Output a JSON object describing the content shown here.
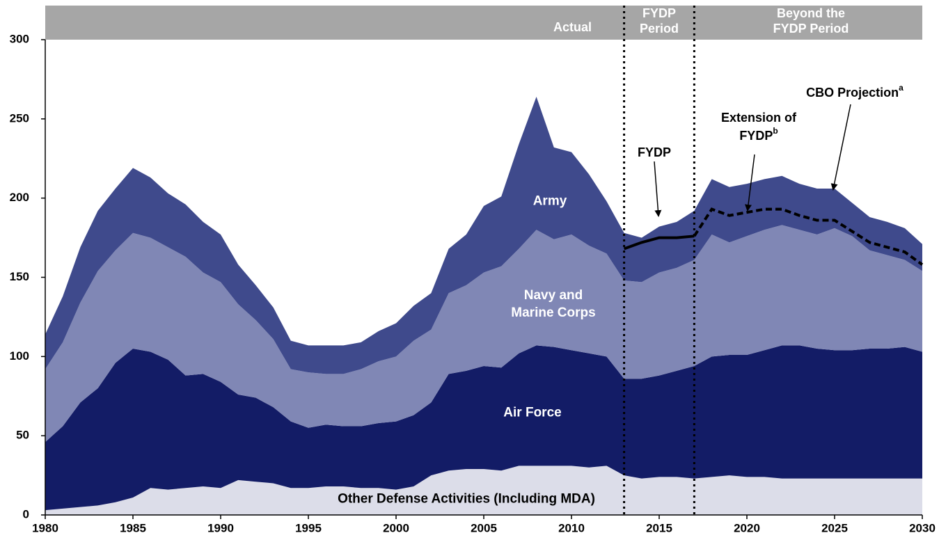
{
  "chart_data": {
    "type": "stacked_area",
    "x": [
      1980,
      1981,
      1982,
      1983,
      1984,
      1985,
      1986,
      1987,
      1988,
      1989,
      1990,
      1991,
      1992,
      1993,
      1994,
      1995,
      1996,
      1997,
      1998,
      1999,
      2000,
      2001,
      2002,
      2003,
      2004,
      2005,
      2006,
      2007,
      2008,
      2009,
      2010,
      2011,
      2012,
      2013,
      2014,
      2015,
      2016,
      2017,
      2018,
      2019,
      2020,
      2021,
      2022,
      2023,
      2024,
      2025,
      2026,
      2027,
      2028,
      2029,
      2030
    ],
    "series": [
      {
        "name": "Other Defense Activities (Including MDA)",
        "color": "#dcdde9",
        "values": [
          3,
          4,
          5,
          6,
          8,
          11,
          17,
          16,
          17,
          18,
          17,
          22,
          21,
          20,
          17,
          17,
          18,
          18,
          17,
          17,
          16,
          18,
          25,
          28,
          29,
          29,
          28,
          31,
          31,
          31,
          31,
          30,
          31,
          25,
          23,
          24,
          24,
          23,
          24,
          25,
          24,
          24,
          23,
          23,
          23,
          23,
          23,
          23,
          23,
          23,
          23
        ]
      },
      {
        "name": "Air Force",
        "color": "#131c66",
        "values": [
          43,
          52,
          66,
          74,
          88,
          94,
          86,
          82,
          71,
          71,
          67,
          54,
          53,
          48,
          42,
          38,
          39,
          38,
          39,
          41,
          43,
          45,
          46,
          61,
          62,
          65,
          65,
          71,
          76,
          75,
          73,
          72,
          69,
          61,
          63,
          64,
          67,
          71,
          76,
          76,
          77,
          80,
          84,
          84,
          82,
          81,
          81,
          82,
          82,
          83,
          80
        ]
      },
      {
        "name": "Navy and Marine Corps",
        "color": "#8087b5",
        "values": [
          46,
          53,
          63,
          74,
          71,
          73,
          72,
          71,
          75,
          64,
          63,
          57,
          49,
          43,
          33,
          35,
          32,
          33,
          36,
          39,
          41,
          47,
          46,
          51,
          54,
          59,
          64,
          66,
          73,
          68,
          73,
          68,
          65,
          62,
          61,
          65,
          65,
          67,
          77,
          71,
          75,
          76,
          76,
          73,
          72,
          77,
          72,
          62,
          59,
          55,
          51
        ]
      },
      {
        "name": "Army",
        "color": "#3f4a8c",
        "values": [
          22,
          29,
          35,
          38,
          39,
          41,
          38,
          34,
          33,
          32,
          30,
          25,
          22,
          20,
          18,
          17,
          18,
          18,
          17,
          19,
          21,
          22,
          23,
          28,
          32,
          42,
          44,
          66,
          84,
          58,
          52,
          45,
          33,
          30,
          28,
          29,
          29,
          31,
          35,
          35,
          33,
          32,
          31,
          29,
          29,
          25,
          21,
          21,
          21,
          20,
          17
        ]
      }
    ],
    "lines": [
      {
        "style": "solid",
        "x": [
          2013,
          2014,
          2015,
          2016,
          2017
        ],
        "values": [
          168,
          172,
          175,
          175,
          176
        ]
      },
      {
        "style": "dashed",
        "x": [
          2017,
          2018,
          2019,
          2020,
          2021,
          2022,
          2023,
          2024,
          2025,
          2026,
          2027,
          2028,
          2029,
          2030
        ],
        "values": [
          176,
          193,
          189,
          191,
          193,
          193,
          189,
          186,
          186,
          179,
          172,
          169,
          166,
          158
        ]
      }
    ],
    "dividers": [
      2013,
      2017
    ],
    "header": [
      {
        "lines": [
          "Actual"
        ]
      },
      {
        "lines": [
          "FYDP",
          "Period"
        ]
      },
      {
        "lines": [
          "Beyond the",
          "FYDP Period"
        ]
      }
    ],
    "annotations": [
      {
        "lines": [
          "FYDP"
        ]
      },
      {
        "lines": [
          "Extension of",
          "FYDP"
        ],
        "note": "b"
      },
      {
        "lines": [
          "CBO Projection"
        ],
        "note": "a"
      }
    ],
    "xlim": [
      1980,
      2030
    ],
    "xticks": [
      1980,
      1985,
      1990,
      1995,
      2000,
      2005,
      2010,
      2015,
      2020,
      2025,
      2030
    ],
    "ylim": [
      0,
      300
    ],
    "yticks": [
      0,
      50,
      100,
      150,
      200,
      250,
      300
    ]
  }
}
